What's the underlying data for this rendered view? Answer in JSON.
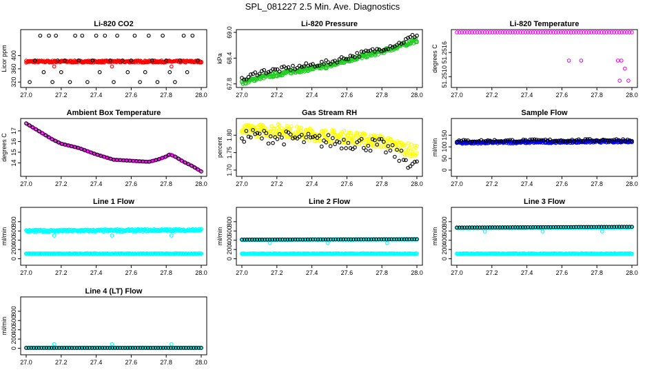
{
  "main_title": "SPL_081227  2.5 Min. Ave. Diagnostics",
  "colors": {
    "black": "#000000",
    "red": "#ff0000",
    "green": "#22cc22",
    "magenta": "#ff00ff",
    "yellow": "#ffff00",
    "blue": "#0000ff",
    "cyan": "#00ffff"
  },
  "chart_data": [
    {
      "id": "co2",
      "type": "scatter",
      "title": "Li-820 CO2",
      "ylabel": "Licor ppm",
      "xlim": [
        27.0,
        28.0
      ],
      "ylim": [
        312,
        470
      ],
      "xticks": [
        "27.0",
        "27.2",
        "27.4",
        "27.6",
        "27.8",
        "28.0"
      ],
      "xtick_values": [
        27.0,
        27.2,
        27.4,
        27.6,
        27.8,
        28.0
      ],
      "yticks": [
        "320",
        "360",
        "400"
      ],
      "ytick_values": [
        320,
        360,
        400
      ],
      "series": [
        {
          "name": "main",
          "color": "#ff0000",
          "style": "band",
          "x": [
            27.0,
            28.0
          ],
          "y": [
            382,
            382
          ],
          "spread": 3
        },
        {
          "name": "outliers",
          "color": "#ff0000",
          "style": "points",
          "x": [
            27.16,
            27.49,
            27.83
          ],
          "y": [
            367,
            367,
            367
          ]
        },
        {
          "name": "black",
          "color": "#000000",
          "style": "points",
          "x": [
            27.02,
            27.05,
            27.08,
            27.1,
            27.13,
            27.15,
            27.17,
            27.18,
            27.2,
            27.22,
            27.25,
            27.28,
            27.3,
            27.32,
            27.35,
            27.38,
            27.4,
            27.42,
            27.45,
            27.48,
            27.5,
            27.52,
            27.55,
            27.58,
            27.6,
            27.62,
            27.65,
            27.68,
            27.7,
            27.72,
            27.75,
            27.78,
            27.8,
            27.82,
            27.85,
            27.88,
            27.9,
            27.92,
            27.95,
            27.98
          ],
          "y": [
            320,
            385,
            460,
            350,
            460,
            320,
            460,
            385,
            350,
            385,
            320,
            460,
            385,
            460,
            320,
            385,
            460,
            350,
            460,
            385,
            320,
            460,
            385,
            350,
            385,
            460,
            320,
            350,
            460,
            385,
            320,
            460,
            385,
            350,
            320,
            385,
            460,
            350,
            460,
            385
          ]
        }
      ]
    },
    {
      "id": "pressure",
      "type": "scatter",
      "title": "Li-820 Pressure",
      "ylabel": "kPa",
      "xlim": [
        27.0,
        28.0
      ],
      "ylim": [
        67.78,
        69.0
      ],
      "xticks": [
        "27.0",
        "27.2",
        "27.4",
        "27.6",
        "27.8",
        "28.0"
      ],
      "xtick_values": [
        27.0,
        27.2,
        27.4,
        27.6,
        27.8,
        28.0
      ],
      "yticks": [
        "67.8",
        "68.4",
        "69.0"
      ],
      "ytick_values": [
        67.8,
        68.4,
        69.0
      ],
      "series": [
        {
          "name": "main",
          "color": "#22cc22",
          "style": "band",
          "x": [
            27.0,
            27.1,
            27.2,
            27.3,
            27.4,
            27.5,
            27.6,
            27.7,
            27.8,
            27.9,
            28.0
          ],
          "y": [
            67.82,
            67.95,
            68.02,
            68.1,
            68.16,
            68.22,
            68.35,
            68.45,
            68.55,
            68.68,
            68.82
          ],
          "spread": 0.05
        },
        {
          "name": "black",
          "color": "#000000",
          "style": "scatter",
          "noise": 0.06,
          "x": [
            27.0,
            27.1,
            27.2,
            27.3,
            27.4,
            27.5,
            27.6,
            27.7,
            27.8,
            27.9,
            28.0
          ],
          "y": [
            67.88,
            68.08,
            68.12,
            68.18,
            68.24,
            68.3,
            68.42,
            68.52,
            68.62,
            68.74,
            68.95
          ]
        }
      ]
    },
    {
      "id": "li-temp",
      "type": "scatter",
      "title": "Li-820 Temperature",
      "ylabel": "degrees C",
      "xlim": [
        27.0,
        28.0
      ],
      "ylim": [
        51.2508,
        51.2521
      ],
      "xticks": [
        "27.0",
        "27.2",
        "27.4",
        "27.6",
        "27.8",
        "28.0"
      ],
      "xtick_values": [
        27.0,
        27.2,
        27.4,
        27.6,
        27.8,
        28.0
      ],
      "yticks": [
        "51.2510",
        "51.2516"
      ],
      "ytick_values": [
        51.251,
        51.2516
      ],
      "series": [
        {
          "name": "top",
          "color": "#ff00ff",
          "style": "points-line",
          "x": [
            27.0,
            28.0
          ],
          "y": [
            51.2521,
            51.2521
          ]
        },
        {
          "name": "outliers",
          "color": "#ff00ff",
          "style": "points",
          "x": [
            27.64,
            27.71,
            27.92,
            27.94,
            27.96,
            27.93,
            27.98
          ],
          "y": [
            51.2514,
            51.2514,
            51.2514,
            51.2514,
            51.2512,
            51.2509,
            51.2509
          ]
        }
      ]
    },
    {
      "id": "box-temp",
      "type": "scatter",
      "title": "Ambient Box Temperature",
      "ylabel": "degrees C",
      "xlim": [
        27.0,
        28.0
      ],
      "ylim": [
        13.0,
        17.9
      ],
      "xticks": [
        "27.0",
        "27.2",
        "27.4",
        "27.6",
        "27.8",
        "28.0"
      ],
      "xtick_values": [
        27.0,
        27.2,
        27.4,
        27.6,
        27.8,
        28.0
      ],
      "yticks": [
        "14",
        "15",
        "16",
        "17"
      ],
      "ytick_values": [
        14,
        15,
        16,
        17
      ],
      "series": [
        {
          "name": "main",
          "color": "#ff00ff",
          "style": "curve",
          "x": [
            27.0,
            27.05,
            27.1,
            27.15,
            27.2,
            27.3,
            27.4,
            27.5,
            27.6,
            27.7,
            27.75,
            27.8,
            27.82,
            27.85,
            27.9,
            27.95,
            28.0
          ],
          "y": [
            17.7,
            17.2,
            16.7,
            16.2,
            15.8,
            15.4,
            14.8,
            14.3,
            14.2,
            14.1,
            14.3,
            14.6,
            14.8,
            14.6,
            14.1,
            13.7,
            13.2
          ]
        },
        {
          "name": "black",
          "color": "#000000",
          "style": "curve-points",
          "x": [
            27.0,
            27.05,
            27.1,
            27.15,
            27.2,
            27.3,
            27.4,
            27.5,
            27.6,
            27.7,
            27.75,
            27.8,
            27.82,
            27.85,
            27.9,
            27.95,
            28.0
          ],
          "y": [
            17.7,
            17.2,
            16.7,
            16.2,
            15.8,
            15.4,
            14.8,
            14.3,
            14.2,
            14.1,
            14.3,
            14.6,
            14.8,
            14.6,
            14.1,
            13.7,
            13.2
          ]
        }
      ]
    },
    {
      "id": "rh",
      "type": "scatter",
      "title": "Gas Stream RH",
      "ylabel": "percent",
      "xlim": [
        27.0,
        28.0
      ],
      "ylim": [
        1.69,
        1.84
      ],
      "xticks": [
        "27.0",
        "27.2",
        "27.4",
        "27.6",
        "27.8",
        "28.0"
      ],
      "xtick_values": [
        27.0,
        27.2,
        27.4,
        27.6,
        27.8,
        28.0
      ],
      "yticks": [
        "1.70",
        "1.75",
        "1.80"
      ],
      "ytick_values": [
        1.7,
        1.75,
        1.8
      ],
      "series": [
        {
          "name": "main",
          "color": "#ffff00",
          "style": "band",
          "x": [
            27.0,
            27.2,
            27.4,
            27.6,
            27.8,
            28.0
          ],
          "y": [
            1.812,
            1.815,
            1.802,
            1.795,
            1.782,
            1.752
          ],
          "spread": 0.018
        },
        {
          "name": "black",
          "color": "#000000",
          "style": "scatter",
          "noise": 0.02,
          "x": [
            27.0,
            27.2,
            27.4,
            27.6,
            27.8,
            28.0
          ],
          "y": [
            1.8,
            1.795,
            1.785,
            1.78,
            1.77,
            1.71
          ]
        }
      ]
    },
    {
      "id": "sample-flow",
      "type": "scatter",
      "title": "Sample Flow",
      "ylabel": "ml/min",
      "xlim": [
        27.0,
        28.0
      ],
      "ylim": [
        -15,
        210
      ],
      "xticks": [
        "27.0",
        "27.2",
        "27.4",
        "27.6",
        "27.8",
        "28.0"
      ],
      "xtick_values": [
        27.0,
        27.2,
        27.4,
        27.6,
        27.8,
        28.0
      ],
      "yticks": [
        "0",
        "50",
        "100",
        "150"
      ],
      "ytick_values": [
        0,
        50,
        100,
        150
      ],
      "series": [
        {
          "name": "main",
          "color": "#0000ff",
          "style": "band",
          "x": [
            27.0,
            28.0
          ],
          "y": [
            118,
            124
          ],
          "spread": 5
        },
        {
          "name": "black",
          "color": "#000000",
          "style": "scatter",
          "noise": 5,
          "x": [
            27.0,
            28.0
          ],
          "y": [
            125,
            130
          ]
        }
      ]
    },
    {
      "id": "line1",
      "type": "scatter",
      "title": "Line 1 Flow",
      "ylabel": "ml/min",
      "xlim": [
        27.0,
        28.0
      ],
      "ylim": [
        -80,
        1050
      ],
      "xticks": [
        "27.0",
        "27.2",
        "27.4",
        "27.6",
        "27.8",
        "28.0"
      ],
      "xtick_values": [
        27.0,
        27.2,
        27.4,
        27.6,
        27.8,
        28.0
      ],
      "yticks": [
        "0",
        "200",
        "400",
        "600",
        "800"
      ],
      "ytick_values": [
        0,
        200,
        400,
        600,
        800
      ],
      "series": [
        {
          "name": "main",
          "color": "#00ffff",
          "style": "band",
          "x": [
            27.0,
            28.0
          ],
          "y": [
            600,
            620
          ],
          "spread": 25
        },
        {
          "name": "outliers",
          "color": "#00ffff",
          "style": "points",
          "x": [
            27.16,
            27.49,
            27.83
          ],
          "y": [
            500,
            500,
            500
          ]
        },
        {
          "name": "black",
          "color": "#000000",
          "style": "points-line",
          "x": [
            27.0,
            28.0
          ],
          "y": [
            110,
            110
          ]
        },
        {
          "name": "cyan-low",
          "color": "#00ffff",
          "style": "band",
          "x": [
            27.0,
            28.0
          ],
          "y": [
            110,
            110
          ],
          "spread": 6
        }
      ]
    },
    {
      "id": "line2",
      "type": "scatter",
      "title": "Line 2 Flow",
      "ylabel": "ml/min",
      "xlim": [
        27.0,
        28.0
      ],
      "ylim": [
        -80,
        1050
      ],
      "xticks": [
        "27.0",
        "27.2",
        "27.4",
        "27.6",
        "27.8",
        "28.0"
      ],
      "xtick_values": [
        27.0,
        27.2,
        27.4,
        27.6,
        27.8,
        28.0
      ],
      "yticks": [
        "0",
        "200",
        "400",
        "600",
        "800"
      ],
      "ytick_values": [
        0,
        200,
        400,
        600,
        800
      ],
      "series": [
        {
          "name": "cyan-low",
          "color": "#00ffff",
          "style": "band",
          "x": [
            27.0,
            28.0
          ],
          "y": [
            110,
            110
          ],
          "spread": 6
        },
        {
          "name": "main",
          "color": "#00ffff",
          "style": "band",
          "x": [
            27.0,
            28.0
          ],
          "y": [
            410,
            420
          ],
          "spread": 6
        },
        {
          "name": "outliers",
          "color": "#00ffff",
          "style": "points",
          "x": [
            27.16,
            27.49,
            27.83
          ],
          "y": [
            340,
            340,
            340
          ]
        },
        {
          "name": "black",
          "color": "#000000",
          "style": "points-line",
          "x": [
            27.0,
            28.0
          ],
          "y": [
            412,
            422
          ]
        }
      ]
    },
    {
      "id": "line3",
      "type": "scatter",
      "title": "Line 3 Flow",
      "ylabel": "ml/min",
      "xlim": [
        27.0,
        28.0
      ],
      "ylim": [
        -80,
        1050
      ],
      "xticks": [
        "27.0",
        "27.2",
        "27.4",
        "27.6",
        "27.8",
        "28.0"
      ],
      "xtick_values": [
        27.0,
        27.2,
        27.4,
        27.6,
        27.8,
        28.0
      ],
      "yticks": [
        "0",
        "200",
        "400",
        "600",
        "800"
      ],
      "ytick_values": [
        0,
        200,
        400,
        600,
        800
      ],
      "series": [
        {
          "name": "cyan-low",
          "color": "#00ffff",
          "style": "band",
          "x": [
            27.0,
            28.0
          ],
          "y": [
            110,
            110
          ],
          "spread": 6
        },
        {
          "name": "main",
          "color": "#00ffff",
          "style": "band",
          "x": [
            27.0,
            28.0
          ],
          "y": [
            660,
            680
          ],
          "spread": 8
        },
        {
          "name": "outliers",
          "color": "#00ffff",
          "style": "points",
          "x": [
            27.16,
            27.49,
            27.83
          ],
          "y": [
            590,
            590,
            590
          ]
        },
        {
          "name": "black",
          "color": "#000000",
          "style": "points-line",
          "x": [
            27.0,
            28.0
          ],
          "y": [
            675,
            690
          ]
        }
      ]
    },
    {
      "id": "line4",
      "type": "scatter",
      "title": "Line 4 (LT) Flow",
      "ylabel": "ml/min",
      "xlim": [
        27.0,
        28.0
      ],
      "ylim": [
        -80,
        1050
      ],
      "xticks": [
        "27.0",
        "27.2",
        "27.4",
        "27.6",
        "27.8",
        "28.0"
      ],
      "xtick_values": [
        27.0,
        27.2,
        27.4,
        27.6,
        27.8,
        28.0
      ],
      "yticks": [
        "0",
        "200",
        "400",
        "600",
        "800"
      ],
      "ytick_values": [
        0,
        200,
        400,
        600,
        800
      ],
      "series": [
        {
          "name": "main",
          "color": "#00ffff",
          "style": "band",
          "x": [
            27.0,
            28.0
          ],
          "y": [
            10,
            10
          ],
          "spread": 4
        },
        {
          "name": "outliers",
          "color": "#00ffff",
          "style": "points",
          "x": [
            27.16,
            27.49,
            27.83
          ],
          "y": [
            90,
            90,
            90
          ]
        },
        {
          "name": "black",
          "color": "#000000",
          "style": "points-line",
          "x": [
            27.0,
            28.0
          ],
          "y": [
            10,
            10
          ]
        }
      ]
    }
  ]
}
